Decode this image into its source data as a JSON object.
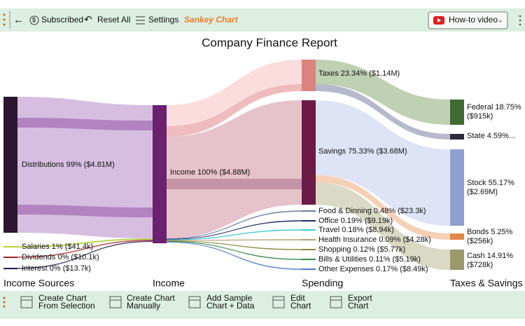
{
  "toolbar": {
    "subscribed": "Subscribed",
    "reset": "Reset All",
    "settings": "Settings",
    "chart_name": "Sankey Chart",
    "video": "How-to video"
  },
  "chart": {
    "title": "Company Finance Report",
    "columns": [
      "Income Sources",
      "Income",
      "Spending",
      "Taxes & Savings"
    ],
    "nodes": [
      {
        "lines": [
          "Distributions 99% ($4.81M)"
        ]
      },
      {
        "lines": [
          "Salaries 1% ($41.4k)"
        ]
      },
      {
        "lines": [
          "Dividends 0% ($10.1k)"
        ]
      },
      {
        "lines": [
          "Interest 0% ($13.7k)"
        ]
      },
      {
        "lines": [
          "Income 100% ($4.88M)"
        ]
      },
      {
        "lines": [
          "Taxes 23.34% ($1.14M)"
        ]
      },
      {
        "lines": [
          "Savings 75.33% ($3.68M)"
        ]
      },
      {
        "lines": [
          "Food & Dinning 0.48% ($23.3k)"
        ]
      },
      {
        "lines": [
          "Office 0.19% ($9.19k)"
        ]
      },
      {
        "lines": [
          "Travel 0.18% ($8.94k)"
        ]
      },
      {
        "lines": [
          "Health Insurance 0.09% ($4.28k)"
        ]
      },
      {
        "lines": [
          "Shopping 0.12% ($5.77k)"
        ]
      },
      {
        "lines": [
          "Bills & Utilities 0.11% ($5.19k)"
        ]
      },
      {
        "lines": [
          "Other Expenses 0.17% ($8.49k)"
        ]
      },
      {
        "lines": [
          "Federal 18.75%",
          "($915k)"
        ]
      },
      {
        "lines": [
          "State 4.59%..."
        ]
      },
      {
        "lines": [
          "Stock 55.17%",
          "($2.69M)"
        ]
      },
      {
        "lines": [
          "Bonds 5.25%",
          "($256k)"
        ]
      },
      {
        "lines": [
          "Cash 14.91%",
          "($728k)"
        ]
      }
    ]
  },
  "bottom_toolbar": {
    "buttons": [
      [
        "Create Chart",
        "From Selection"
      ],
      [
        "Create Chart",
        "Manually"
      ],
      [
        "Add Sample",
        "Chart + Data"
      ],
      [
        "Edit",
        "Chart"
      ],
      [
        "Export",
        "Chart"
      ]
    ]
  }
}
